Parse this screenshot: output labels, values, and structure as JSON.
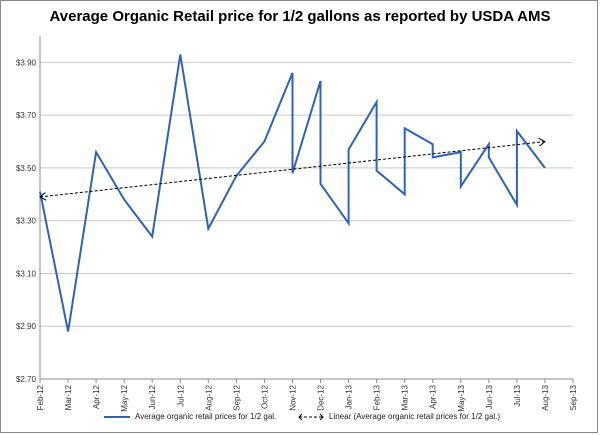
{
  "chart_data": {
    "type": "line",
    "title": "Average Organic Retail price for 1/2 gallons as reported by USDA AMS",
    "xlabel": "",
    "ylabel": "",
    "x_ticks": [
      "Feb-12",
      "Mar-12",
      "Apr-12",
      "May-12",
      "Jun-12",
      "Jul-12",
      "Aug-12",
      "Sep-12",
      "Oct-12",
      "Nov-12",
      "Dec-12",
      "Jan-13",
      "Feb-13",
      "Mar-13",
      "Apr-13",
      "May-13",
      "Jun-13",
      "Jul-13",
      "Aug-13",
      "Sep-13"
    ],
    "y_ticks": [
      "$2.70",
      "$2.90",
      "$3.10",
      "$3.30",
      "$3.50",
      "$3.70",
      "$3.90"
    ],
    "ylim": [
      2.7,
      4.0
    ],
    "xlim": [
      0,
      19
    ],
    "grid": "horizontal",
    "legend_position": "bottom",
    "series": [
      {
        "name": "Average organic retail prices for 1/2 gal.",
        "color": "#2e63b8",
        "x": [
          0,
          1,
          2,
          3,
          4,
          5,
          6,
          7,
          8,
          9,
          9,
          10,
          10,
          11,
          11,
          12,
          12,
          13,
          13,
          14,
          14,
          15,
          15,
          16,
          16,
          17,
          17,
          18
        ],
        "y": [
          3.41,
          2.88,
          3.56,
          3.38,
          3.24,
          3.93,
          3.27,
          3.47,
          3.6,
          3.86,
          3.48,
          3.83,
          3.44,
          3.29,
          3.57,
          3.75,
          3.49,
          3.4,
          3.65,
          3.59,
          3.54,
          3.56,
          3.43,
          3.59,
          3.54,
          3.36,
          3.64,
          3.5
        ]
      },
      {
        "name": "Linear (Average organic retail prices for 1/2 gal.)",
        "type": "trendline",
        "color": "#000000",
        "x": [
          0,
          18
        ],
        "y": [
          3.39,
          3.6
        ]
      }
    ]
  }
}
